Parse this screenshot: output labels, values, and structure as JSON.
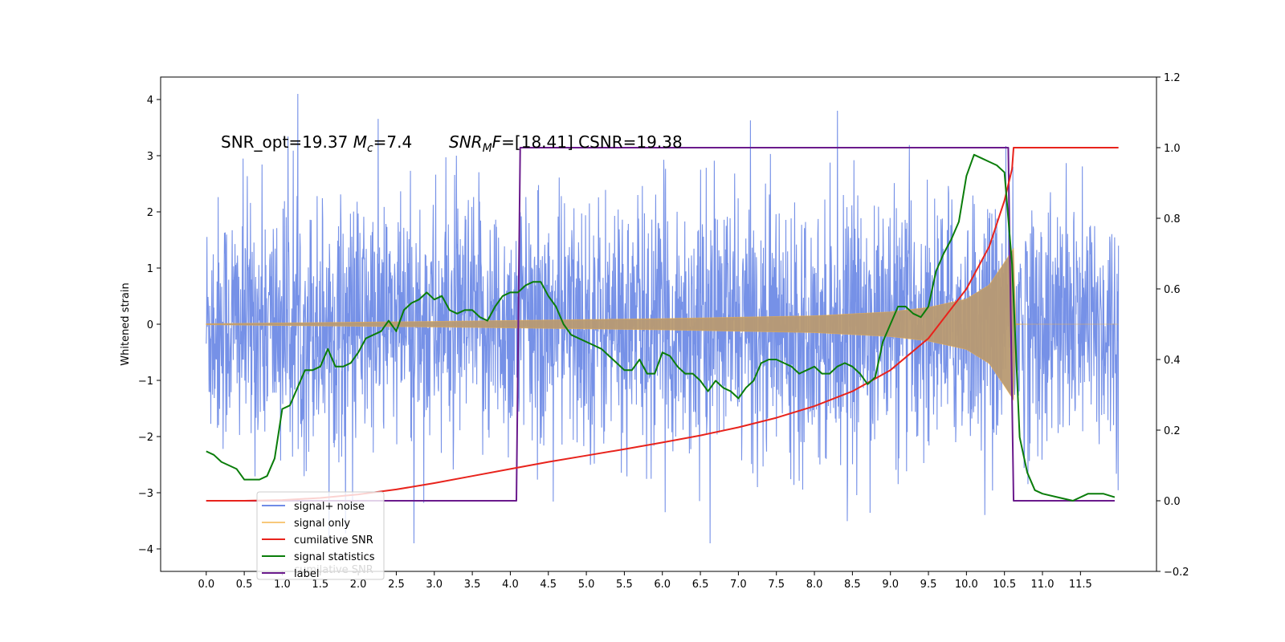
{
  "chart_data": {
    "type": "line",
    "title": "",
    "xlabel": "",
    "ylabel": "Whitened strain",
    "xlim": [
      -0.6,
      12.5
    ],
    "ylim": [
      -4.4,
      4.4
    ],
    "y2lim": [
      -0.2,
      1.2
    ],
    "x_ticks": [
      "0.0",
      "0.5",
      "1.0",
      "1.5",
      "2.0",
      "2.5",
      "3.0",
      "3.5",
      "4.0",
      "4.5",
      "5.0",
      "5.5",
      "6.0",
      "6.5",
      "7.0",
      "7.5",
      "8.0",
      "8.5",
      "9.0",
      "9.5",
      "10.0",
      "10.5",
      "11.0",
      "11.5"
    ],
    "y_ticks": [
      "4",
      "3",
      "2",
      "1",
      "0",
      "−1",
      "−2",
      "−3",
      "−4"
    ],
    "y2_ticks": [
      "1.2",
      "1.0",
      "0.8",
      "0.6",
      "0.4",
      "0.2",
      "0.0",
      "−0.2"
    ],
    "annotation": {
      "part1": "SNR_opt=19.37 ",
      "mc_symbol": "M",
      "mc_sub": "c",
      "mc_value": "=7.4",
      "snr_symbol": "SNR",
      "snr_sub": "M",
      "snr_f": "F",
      "snr_value": "=[18.41] CSNR=19.38"
    },
    "legend": {
      "position": "lower-left",
      "entries": [
        "signal+ noise",
        "signal only",
        "cumilative SNR",
        "signal statistics",
        "label"
      ],
      "ghost_text": "cumilative SNR"
    },
    "colors": {
      "noise": "#6f8be6",
      "signal": "#f5b041",
      "cum_snr": "#e8231c",
      "stats": "#0a7d0a",
      "label": "#6a1a8c",
      "overlap": "#b89a72"
    },
    "series": [
      {
        "name": "signal+ noise",
        "axis": "left",
        "x_range": [
          0.0,
          12.0
        ],
        "approx_amplitude": 1.8,
        "peak_values": [
          4.1,
          3.9,
          -3.9,
          -3.8
        ]
      },
      {
        "name": "signal only",
        "axis": "left",
        "x_range": [
          0.0,
          12.0
        ],
        "envelope_x": [
          0.0,
          3.0,
          6.0,
          8.0,
          9.0,
          9.5,
          10.0,
          10.3,
          10.5,
          10.62
        ],
        "envelope_y": [
          0.01,
          0.05,
          0.1,
          0.15,
          0.22,
          0.3,
          0.45,
          0.7,
          1.1,
          1.35
        ],
        "merger_x": 10.62
      },
      {
        "name": "cumilative SNR",
        "axis": "right",
        "x": [
          0.0,
          0.5,
          1.0,
          1.5,
          2.0,
          2.5,
          3.0,
          3.5,
          4.0,
          4.5,
          5.0,
          5.5,
          6.0,
          6.5,
          7.0,
          7.5,
          8.0,
          8.5,
          9.0,
          9.5,
          10.0,
          10.3,
          10.5,
          10.6,
          10.62,
          12.0
        ],
        "y": [
          0.0,
          0.0,
          0.002,
          0.008,
          0.018,
          0.032,
          0.05,
          0.07,
          0.09,
          0.11,
          0.128,
          0.146,
          0.165,
          0.185,
          0.208,
          0.235,
          0.268,
          0.31,
          0.37,
          0.46,
          0.6,
          0.72,
          0.85,
          0.94,
          1.0,
          1.0
        ]
      },
      {
        "name": "signal statistics",
        "axis": "right",
        "x": [
          0.0,
          0.1,
          0.2,
          0.3,
          0.4,
          0.5,
          0.6,
          0.7,
          0.8,
          0.9,
          1.0,
          1.1,
          1.2,
          1.3,
          1.4,
          1.5,
          1.6,
          1.7,
          1.8,
          1.9,
          2.0,
          2.1,
          2.2,
          2.3,
          2.4,
          2.5,
          2.6,
          2.7,
          2.8,
          2.9,
          3.0,
          3.1,
          3.2,
          3.3,
          3.4,
          3.5,
          3.6,
          3.7,
          3.8,
          3.9,
          4.0,
          4.1,
          4.2,
          4.3,
          4.4,
          4.5,
          4.6,
          4.7,
          4.8,
          4.9,
          5.0,
          5.1,
          5.2,
          5.3,
          5.4,
          5.5,
          5.6,
          5.7,
          5.8,
          5.9,
          6.0,
          6.1,
          6.2,
          6.3,
          6.4,
          6.5,
          6.6,
          6.7,
          6.8,
          6.9,
          7.0,
          7.1,
          7.2,
          7.3,
          7.4,
          7.5,
          7.6,
          7.7,
          7.8,
          7.9,
          8.0,
          8.1,
          8.2,
          8.3,
          8.4,
          8.5,
          8.6,
          8.7,
          8.8,
          8.9,
          9.0,
          9.1,
          9.2,
          9.3,
          9.4,
          9.5,
          9.6,
          9.7,
          9.8,
          9.9,
          10.0,
          10.1,
          10.2,
          10.3,
          10.4,
          10.5,
          10.6,
          10.7,
          10.8,
          10.9,
          11.0,
          11.2,
          11.4,
          11.6,
          11.8,
          11.95
        ],
        "y": [
          0.14,
          0.13,
          0.11,
          0.1,
          0.09,
          0.06,
          0.06,
          0.06,
          0.07,
          0.12,
          0.26,
          0.27,
          0.32,
          0.37,
          0.37,
          0.38,
          0.43,
          0.38,
          0.38,
          0.39,
          0.42,
          0.46,
          0.47,
          0.48,
          0.51,
          0.48,
          0.54,
          0.56,
          0.57,
          0.59,
          0.57,
          0.58,
          0.54,
          0.53,
          0.54,
          0.54,
          0.52,
          0.51,
          0.55,
          0.58,
          0.59,
          0.59,
          0.61,
          0.62,
          0.62,
          0.58,
          0.55,
          0.5,
          0.47,
          0.46,
          0.45,
          0.44,
          0.43,
          0.41,
          0.39,
          0.37,
          0.37,
          0.4,
          0.36,
          0.36,
          0.42,
          0.41,
          0.38,
          0.36,
          0.36,
          0.34,
          0.31,
          0.34,
          0.32,
          0.31,
          0.29,
          0.32,
          0.34,
          0.39,
          0.4,
          0.4,
          0.39,
          0.38,
          0.36,
          0.37,
          0.38,
          0.36,
          0.36,
          0.38,
          0.39,
          0.38,
          0.36,
          0.33,
          0.35,
          0.45,
          0.5,
          0.55,
          0.55,
          0.53,
          0.52,
          0.55,
          0.65,
          0.7,
          0.74,
          0.79,
          0.92,
          0.98,
          0.97,
          0.96,
          0.95,
          0.93,
          0.67,
          0.18,
          0.08,
          0.03,
          0.02,
          0.01,
          0.0,
          0.02,
          0.02,
          0.01
        ]
      },
      {
        "name": "label",
        "axis": "right",
        "x": [
          0.0,
          4.08,
          4.13,
          10.55,
          10.62,
          11.95
        ],
        "y": [
          0.0,
          0.0,
          1.0,
          1.0,
          0.0,
          0.0
        ]
      }
    ]
  }
}
